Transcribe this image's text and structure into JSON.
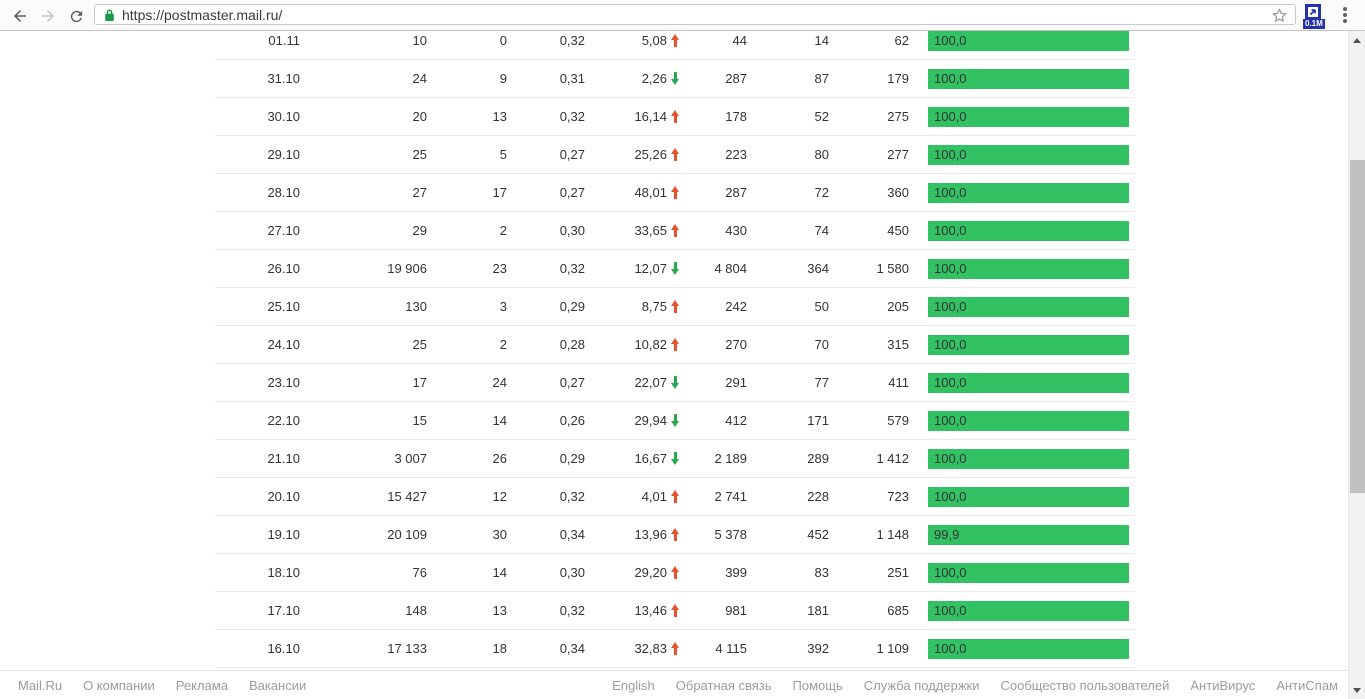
{
  "browser": {
    "url": "https://postmaster.mail.ru/",
    "extension_badge": "0.1M"
  },
  "colors": {
    "bar_green": "#33c263",
    "trend_up_red": "#e4512b",
    "trend_down_green": "#28a94f",
    "lock_green": "#1a9a4a",
    "extension_blue": "#2433ad"
  },
  "table": {
    "rows": [
      {
        "date": "01.11",
        "c1": "10",
        "c2": "0",
        "c3": "0,32",
        "pct": "5,08",
        "trend": "up",
        "c4": "44",
        "c5": "14",
        "c6": "62",
        "bar": "100,0",
        "bar_value": 100.0
      },
      {
        "date": "31.10",
        "c1": "24",
        "c2": "9",
        "c3": "0,31",
        "pct": "2,26",
        "trend": "down",
        "c4": "287",
        "c5": "87",
        "c6": "179",
        "bar": "100,0",
        "bar_value": 100.0
      },
      {
        "date": "30.10",
        "c1": "20",
        "c2": "13",
        "c3": "0,32",
        "pct": "16,14",
        "trend": "up",
        "c4": "178",
        "c5": "52",
        "c6": "275",
        "bar": "100,0",
        "bar_value": 100.0
      },
      {
        "date": "29.10",
        "c1": "25",
        "c2": "5",
        "c3": "0,27",
        "pct": "25,26",
        "trend": "up",
        "c4": "223",
        "c5": "80",
        "c6": "277",
        "bar": "100,0",
        "bar_value": 100.0
      },
      {
        "date": "28.10",
        "c1": "27",
        "c2": "17",
        "c3": "0,27",
        "pct": "48,01",
        "trend": "up",
        "c4": "287",
        "c5": "72",
        "c6": "360",
        "bar": "100,0",
        "bar_value": 100.0
      },
      {
        "date": "27.10",
        "c1": "29",
        "c2": "2",
        "c3": "0,30",
        "pct": "33,65",
        "trend": "up",
        "c4": "430",
        "c5": "74",
        "c6": "450",
        "bar": "100,0",
        "bar_value": 100.0
      },
      {
        "date": "26.10",
        "c1": "19 906",
        "c2": "23",
        "c3": "0,32",
        "pct": "12,07",
        "trend": "down",
        "c4": "4 804",
        "c5": "364",
        "c6": "1 580",
        "bar": "100,0",
        "bar_value": 100.0
      },
      {
        "date": "25.10",
        "c1": "130",
        "c2": "3",
        "c3": "0,29",
        "pct": "8,75",
        "trend": "up",
        "c4": "242",
        "c5": "50",
        "c6": "205",
        "bar": "100,0",
        "bar_value": 100.0
      },
      {
        "date": "24.10",
        "c1": "25",
        "c2": "2",
        "c3": "0,28",
        "pct": "10,82",
        "trend": "up",
        "c4": "270",
        "c5": "70",
        "c6": "315",
        "bar": "100,0",
        "bar_value": 100.0
      },
      {
        "date": "23.10",
        "c1": "17",
        "c2": "24",
        "c3": "0,27",
        "pct": "22,07",
        "trend": "down",
        "c4": "291",
        "c5": "77",
        "c6": "411",
        "bar": "100,0",
        "bar_value": 100.0
      },
      {
        "date": "22.10",
        "c1": "15",
        "c2": "14",
        "c3": "0,26",
        "pct": "29,94",
        "trend": "down",
        "c4": "412",
        "c5": "171",
        "c6": "579",
        "bar": "100,0",
        "bar_value": 100.0
      },
      {
        "date": "21.10",
        "c1": "3 007",
        "c2": "26",
        "c3": "0,29",
        "pct": "16,67",
        "trend": "down",
        "c4": "2 189",
        "c5": "289",
        "c6": "1 412",
        "bar": "100,0",
        "bar_value": 100.0
      },
      {
        "date": "20.10",
        "c1": "15 427",
        "c2": "12",
        "c3": "0,32",
        "pct": "4,01",
        "trend": "up",
        "c4": "2 741",
        "c5": "228",
        "c6": "723",
        "bar": "100,0",
        "bar_value": 100.0
      },
      {
        "date": "19.10",
        "c1": "20 109",
        "c2": "30",
        "c3": "0,34",
        "pct": "13,96",
        "trend": "up",
        "c4": "5 378",
        "c5": "452",
        "c6": "1 148",
        "bar": "99,9",
        "bar_value": 99.9
      },
      {
        "date": "18.10",
        "c1": "76",
        "c2": "14",
        "c3": "0,30",
        "pct": "29,20",
        "trend": "up",
        "c4": "399",
        "c5": "83",
        "c6": "251",
        "bar": "100,0",
        "bar_value": 100.0
      },
      {
        "date": "17.10",
        "c1": "148",
        "c2": "13",
        "c3": "0,32",
        "pct": "13,46",
        "trend": "up",
        "c4": "981",
        "c5": "181",
        "c6": "685",
        "bar": "100,0",
        "bar_value": 100.0
      },
      {
        "date": "16.10",
        "c1": "17 133",
        "c2": "18",
        "c3": "0,34",
        "pct": "32,83",
        "trend": "up",
        "c4": "4 115",
        "c5": "392",
        "c6": "1 109",
        "bar": "100,0",
        "bar_value": 100.0
      }
    ]
  },
  "footer": {
    "left_links": [
      "Mail.Ru",
      "О компании",
      "Реклама",
      "Вакансии"
    ],
    "right_links": [
      "English",
      "Обратная связь",
      "Помощь",
      "Служба поддержки",
      "Сообщество пользователей",
      "АнтиВирус",
      "АнтиСпам"
    ]
  }
}
